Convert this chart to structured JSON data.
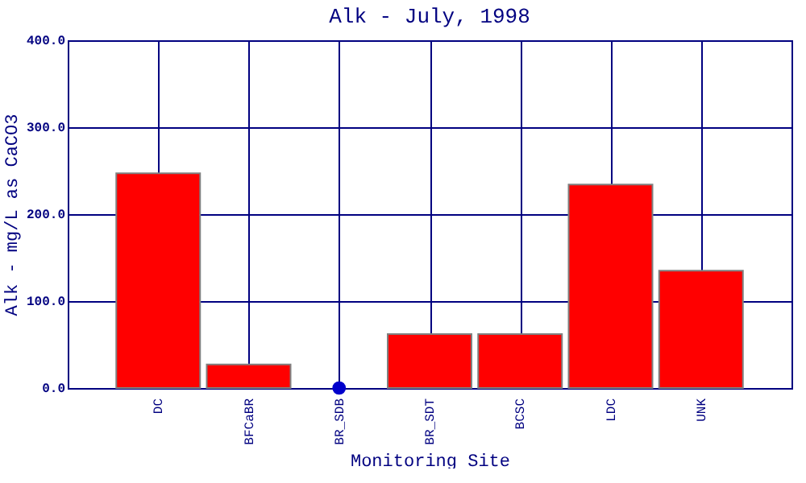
{
  "chart_data": {
    "type": "bar",
    "title": "Alk - July, 1998",
    "xlabel": "Monitoring Site",
    "ylabel": "Alk - mg/L as CaCO3",
    "categories": [
      "DC",
      "BFCaBR",
      "BR_SDB",
      "BR_SDT",
      "BCSC",
      "LDC",
      "UNK"
    ],
    "series": [
      {
        "color": "#ff0000",
        "values": [
          247,
          27,
          null,
          62,
          62,
          234,
          135
        ]
      },
      {
        "type": "scatter",
        "color": "#0000cc",
        "x": [
          "BR_SDB"
        ],
        "values": [
          0
        ]
      }
    ],
    "ylim": [
      0,
      400
    ],
    "yticks": [
      {
        "value": 0,
        "label": "0.0"
      },
      {
        "value": 100,
        "label": "100.0"
      },
      {
        "value": 200,
        "label": "200.0"
      },
      {
        "value": 300,
        "label": "300.0"
      },
      {
        "value": 400,
        "label": "400.0"
      }
    ],
    "grid": true,
    "marker": "circle"
  }
}
